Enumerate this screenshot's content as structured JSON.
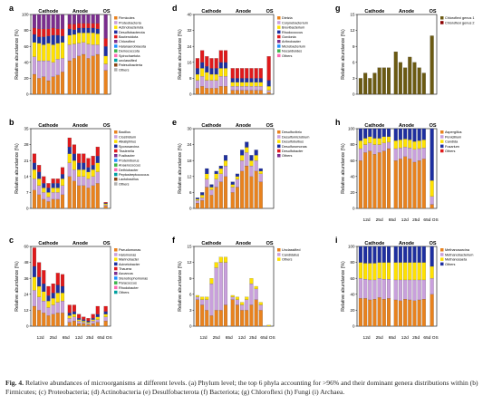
{
  "caption": {
    "label": "Fig. 4.",
    "text": "Relative abundances of microorganisms at different levels. (a) Phylum level; the top 6 phyla accounting for >96% and their dominant genera distributions within (b) Firmicutes; (c) Proteobacteria; (d) Actinobacteria (e) Desulfobacterota (f) Bacteriota; (g) Chloroflexi (h) Fungi (i) Archaea."
  },
  "palette": [
    "#e8821e",
    "#c9a0dc",
    "#ffe100",
    "#1e2fa0",
    "#e0191b",
    "#7b2d8e",
    "#1e90ff",
    "#3cb44b",
    "#ff69b4",
    "#00a0a0",
    "#8b4513",
    "#b0b0b0",
    "#000000",
    "#90ee90",
    "#ffd700",
    "#800000"
  ],
  "chart_data": [
    {
      "id": "a",
      "type": "bar",
      "stacked": true,
      "ylabel": "Relative abundance (%)",
      "ylim": [
        0,
        100
      ],
      "groups": [
        "Cathode",
        "Anode",
        "OS"
      ],
      "legend": [
        "Firmicutes",
        "Proteobacteria",
        "Actinobacteriota",
        "Desulfobacterota",
        "Bacteroidota",
        "Chloroflexi",
        "Halanaerobiaeota",
        "Deinococcota",
        "Spirochaetota",
        "unclassified",
        "Patescibacteria",
        "Others"
      ],
      "series": [
        {
          "name": "Firmicutes",
          "values": [
            25,
            20,
            22,
            17,
            22,
            24,
            28,
            42,
            45,
            48,
            50,
            45,
            48,
            50,
            30
          ]
        },
        {
          "name": "Proteobacteria",
          "values": [
            22,
            22,
            20,
            25,
            18,
            20,
            17,
            20,
            18,
            16,
            15,
            18,
            14,
            12,
            8
          ]
        },
        {
          "name": "Actinobacteriota",
          "values": [
            18,
            22,
            20,
            22,
            22,
            20,
            20,
            12,
            12,
            13,
            12,
            14,
            15,
            14,
            10
          ]
        },
        {
          "name": "Desulfobacterota",
          "values": [
            10,
            8,
            10,
            9,
            12,
            10,
            8,
            8,
            6,
            6,
            6,
            6,
            6,
            6,
            12
          ]
        },
        {
          "name": "Bacteroidota",
          "values": [
            8,
            10,
            10,
            9,
            9,
            8,
            9,
            6,
            7,
            6,
            6,
            6,
            6,
            7,
            10
          ]
        },
        {
          "name": "Others",
          "values": [
            17,
            18,
            18,
            18,
            17,
            18,
            18,
            12,
            12,
            11,
            11,
            11,
            11,
            11,
            30
          ]
        }
      ]
    },
    {
      "id": "b",
      "type": "bar",
      "stacked": true,
      "ylabel": "Relative abundance (%)",
      "ylim": [
        0,
        35
      ],
      "groups": [
        "Cathode",
        "Anode",
        "OS"
      ],
      "legend": [
        "Bacillus",
        "Clostridium",
        "Alkaliphilus",
        "Sporosarcina",
        "Tissierella",
        "Fusibacter",
        "Proteiniborus",
        "Anaerococcus",
        "Dethiobacter",
        "Peptostreptococcus",
        "Lactobacillus",
        "Others"
      ],
      "series": [
        {
          "name": "Bacillus",
          "values": [
            8,
            6,
            4,
            3,
            4,
            4,
            6,
            14,
            12,
            10,
            10,
            9,
            10,
            11,
            1
          ]
        },
        {
          "name": "Clostridium",
          "values": [
            5,
            4,
            3,
            2,
            3,
            3,
            4,
            6,
            5,
            4,
            4,
            4,
            4,
            5,
            0.5
          ]
        },
        {
          "name": "Alkaliphilus",
          "values": [
            4,
            3,
            2,
            2,
            2,
            2,
            3,
            4,
            4,
            3,
            3,
            3,
            3,
            4,
            0.5
          ]
        },
        {
          "name": "Sporosarcina",
          "values": [
            3,
            3,
            2,
            2,
            2,
            2,
            2,
            3,
            3,
            3,
            3,
            2,
            2,
            3,
            0.3
          ]
        },
        {
          "name": "Others",
          "values": [
            4,
            3,
            3,
            2,
            2,
            2,
            3,
            4,
            4,
            4,
            4,
            4,
            4,
            4,
            0.4
          ]
        }
      ]
    },
    {
      "id": "c",
      "type": "bar",
      "stacked": true,
      "ylabel": "Relative abundance (%)",
      "ylim": [
        0,
        60
      ],
      "groups": [
        "Cathode",
        "Anode",
        "OS"
      ],
      "xticks": [
        "12d",
        "25d",
        "65d",
        "12d",
        "25d",
        "65d",
        "OS"
      ],
      "legend": [
        "Pseudomonas",
        "Halomonas",
        "Marinobacter",
        "Acinetobacter",
        "Thauera",
        "Azoarcus",
        "Stenotrophomonas",
        "Paracoccus",
        "Rhodobacter",
        "Others"
      ],
      "series": [
        {
          "name": "Pseudomonas",
          "values": [
            15,
            12,
            10,
            8,
            9,
            10,
            10,
            3,
            4,
            2,
            2,
            1,
            2,
            3,
            4
          ]
        },
        {
          "name": "Halomonas",
          "values": [
            12,
            10,
            9,
            6,
            7,
            8,
            9,
            3,
            3,
            2,
            1,
            1,
            2,
            2,
            3
          ]
        },
        {
          "name": "Marinobacter",
          "values": [
            10,
            8,
            7,
            5,
            5,
            7,
            6,
            2,
            2,
            1,
            1,
            1,
            1,
            2,
            2
          ]
        },
        {
          "name": "Acinetobacter",
          "values": [
            8,
            7,
            6,
            4,
            4,
            6,
            5,
            2,
            2,
            1,
            1,
            1,
            1,
            2,
            2
          ]
        },
        {
          "name": "Others",
          "values": [
            14,
            11,
            10,
            7,
            7,
            9,
            9,
            6,
            5,
            3,
            2,
            2,
            3,
            6,
            4
          ]
        }
      ]
    },
    {
      "id": "d",
      "type": "bar",
      "stacked": true,
      "ylabel": "Relative abundance (%)",
      "ylim": [
        0,
        40
      ],
      "groups": [
        "Cathode",
        "Anode",
        "OS"
      ],
      "legend": [
        "Dietzia",
        "Corynebacterium",
        "Brevibacterium",
        "Rhodococcus",
        "Gordonia",
        "Arthrobacter",
        "Microbacterium",
        "Nocardioides",
        "Others"
      ],
      "series": [
        {
          "name": "Dietzia",
          "values": [
            3,
            4,
            3,
            3,
            3,
            4,
            4,
            2,
            2,
            2,
            2,
            2,
            2,
            2,
            1
          ]
        },
        {
          "name": "Corynebacterium",
          "values": [
            4,
            5,
            4,
            4,
            4,
            5,
            5,
            2,
            2,
            2,
            2,
            2,
            2,
            2,
            1
          ]
        },
        {
          "name": "Brevibacterium",
          "values": [
            3,
            4,
            4,
            3,
            3,
            4,
            4,
            2,
            2,
            2,
            2,
            2,
            2,
            2,
            2
          ]
        },
        {
          "name": "Rhodococcus",
          "values": [
            3,
            3,
            3,
            3,
            3,
            3,
            3,
            2,
            2,
            2,
            2,
            2,
            2,
            2,
            3
          ]
        },
        {
          "name": "Others",
          "values": [
            5,
            6,
            5,
            5,
            5,
            6,
            6,
            5,
            5,
            5,
            5,
            5,
            5,
            5,
            12
          ]
        }
      ]
    },
    {
      "id": "e",
      "type": "bar",
      "stacked": true,
      "ylabel": "Relative abundance (%)",
      "ylim": [
        0,
        30
      ],
      "groups": [
        "Cathode",
        "Anode",
        "OS"
      ],
      "legend": [
        "Desulfovibrio",
        "Desulfomicrobium",
        "Desulfobulbus",
        "Desulfuromonas",
        "Desulfobacter",
        "Others"
      ],
      "series": [
        {
          "name": "Desulfovibrio",
          "values": [
            2,
            3,
            8,
            5,
            8,
            10,
            12,
            6,
            8,
            14,
            16,
            12,
            14,
            10,
            0
          ]
        },
        {
          "name": "Desulfomicrobium",
          "values": [
            1,
            1,
            3,
            2,
            3,
            3,
            4,
            2,
            3,
            4,
            5,
            4,
            4,
            3,
            0
          ]
        },
        {
          "name": "Desulfobulbus",
          "values": [
            0.5,
            1,
            2,
            1,
            2,
            2,
            2,
            1,
            1,
            2,
            2,
            2,
            2,
            1,
            0
          ]
        },
        {
          "name": "Others",
          "values": [
            0.5,
            1,
            2,
            1,
            1,
            1,
            2,
            1,
            1,
            2,
            2,
            2,
            2,
            1,
            0
          ]
        }
      ]
    },
    {
      "id": "f",
      "type": "bar",
      "stacked": true,
      "ylabel": "Relative abundance (%)",
      "ylim": [
        0,
        15
      ],
      "groups": [
        "Cathode",
        "Anode",
        "OS"
      ],
      "xticks": [
        "12d",
        "25d",
        "65d",
        "12d",
        "25d",
        "65d",
        "OS"
      ],
      "legend": [
        "Unclassified",
        "Candidatus",
        "Others"
      ],
      "series": [
        {
          "name": "Unclassified",
          "values": [
            5,
            4,
            3,
            2,
            3,
            3,
            4,
            5,
            4,
            3,
            3,
            4,
            5,
            3,
            0
          ]
        },
        {
          "name": "Candidatus",
          "values": [
            0.5,
            1,
            2,
            6,
            8,
            9,
            8,
            0.5,
            1,
            1,
            2,
            4,
            2,
            1,
            0
          ]
        },
        {
          "name": "Others",
          "values": [
            0.3,
            0.5,
            0.5,
            1,
            1,
            1,
            1,
            0.3,
            0.5,
            0.5,
            0.5,
            1,
            0.5,
            0.5,
            0.2
          ]
        }
      ]
    },
    {
      "id": "g",
      "type": "bar",
      "stacked": false,
      "ylabel": "Relative abundance (%)",
      "ylim": [
        0,
        15
      ],
      "groups": [
        "Cathode",
        "Anode",
        "OS"
      ],
      "legend": [
        "Chloroflexi genus 1",
        "Chloroflexi genus 2"
      ],
      "series": [
        {
          "name": "Chloroflexi genus 1",
          "values": [
            3,
            4,
            3,
            4,
            5,
            5,
            5,
            8,
            6,
            5,
            7,
            6,
            5,
            4,
            11
          ]
        },
        {
          "name": "Chloroflexi genus 2",
          "values": [
            0.5,
            0.5,
            0.5,
            0.5,
            0.5,
            0.5,
            0.5,
            1,
            1,
            0.5,
            0.5,
            0.5,
            0.5,
            0.5,
            2
          ]
        }
      ]
    },
    {
      "id": "h",
      "type": "bar",
      "stacked": true,
      "ylabel": "Relative abundance (%)",
      "ylim": [
        0,
        100
      ],
      "groups": [
        "Cathode",
        "Anode",
        "OS"
      ],
      "xticks": [
        "12d",
        "25d",
        "65d",
        "12d",
        "25d",
        "65d",
        "OS"
      ],
      "legend": [
        "Aspergillus",
        "Penicillium",
        "Candida",
        "Fusarium",
        "Others"
      ],
      "series": [
        {
          "name": "Aspergillus",
          "values": [
            60,
            70,
            72,
            68,
            70,
            72,
            75,
            60,
            62,
            65,
            62,
            58,
            60,
            62,
            5
          ]
        },
        {
          "name": "Penicillium",
          "values": [
            15,
            10,
            10,
            12,
            10,
            10,
            8,
            15,
            14,
            12,
            14,
            16,
            15,
            14,
            10
          ]
        },
        {
          "name": "Candida",
          "values": [
            10,
            8,
            8,
            8,
            8,
            8,
            7,
            10,
            10,
            10,
            10,
            10,
            10,
            10,
            20
          ]
        },
        {
          "name": "Others",
          "values": [
            15,
            12,
            10,
            12,
            12,
            10,
            10,
            15,
            14,
            13,
            14,
            16,
            15,
            14,
            65
          ]
        }
      ]
    },
    {
      "id": "i",
      "type": "bar",
      "stacked": true,
      "ylabel": "Relative abundance (%)",
      "ylim": [
        0,
        100
      ],
      "groups": [
        "Cathode",
        "Anode",
        "OS"
      ],
      "xticks": [
        "12d",
        "25d",
        "65d",
        "12d",
        "25d",
        "65d",
        "OS"
      ],
      "legend": [
        "Methanosarcina",
        "Methanobacterium",
        "Methanosaeta",
        "Others"
      ],
      "series": [
        {
          "name": "Methanosarcina",
          "values": [
            35,
            35,
            33,
            34,
            36,
            34,
            35,
            33,
            32,
            34,
            33,
            32,
            33,
            34,
            40
          ]
        },
        {
          "name": "Methanobacterium",
          "values": [
            25,
            24,
            25,
            24,
            24,
            25,
            24,
            25,
            26,
            24,
            25,
            26,
            25,
            24,
            20
          ]
        },
        {
          "name": "Methanosaeta",
          "values": [
            20,
            20,
            21,
            21,
            20,
            21,
            21,
            22,
            22,
            22,
            22,
            22,
            22,
            22,
            15
          ]
        },
        {
          "name": "Others",
          "values": [
            20,
            21,
            21,
            21,
            20,
            20,
            20,
            20,
            20,
            20,
            20,
            20,
            20,
            20,
            25
          ]
        }
      ]
    }
  ]
}
